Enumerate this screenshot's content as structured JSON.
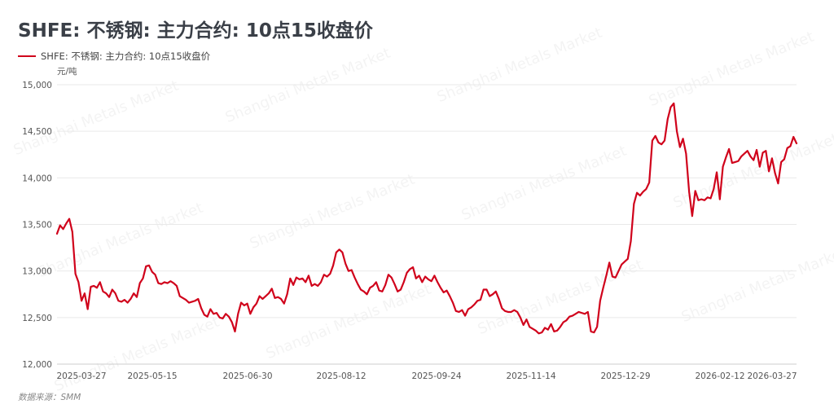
{
  "title": "SHFE: 不锈钢: 主力合约: 10点15收盘价",
  "source": "数据来源：SMM",
  "watermark": "Shanghai Metals Market",
  "colors": {
    "line": "#d0021b",
    "grid": "#e9e9e9"
  },
  "chart_data": {
    "type": "line",
    "title": "SHFE: 不锈钢: 主力合约: 10点15收盘价",
    "ylabel": "元/吨",
    "xlabel": "",
    "ylim": [
      12000,
      15000
    ],
    "yticks": [
      12000,
      12500,
      13000,
      13500,
      14000,
      14500,
      15000
    ],
    "ytick_labels": [
      "12,000",
      "12,500",
      "13,000",
      "13,500",
      "14,000",
      "14,500",
      "15,000"
    ],
    "xtick_labels": [
      "2025-03-27",
      "2025-05-15",
      "2025-06-30",
      "2025-08-12",
      "2025-09-24",
      "2025-11-14",
      "2025-12-29",
      "2026-02-12",
      "2026-03-27"
    ],
    "grid": true,
    "legend": "top-left",
    "series": [
      {
        "name": "SHFE: 不锈钢: 主力合约: 10点15收盘价",
        "values": [
          13400,
          13490,
          13450,
          13510,
          13560,
          13420,
          12970,
          12880,
          12680,
          12760,
          12590,
          12830,
          12840,
          12820,
          12880,
          12780,
          12760,
          12720,
          12800,
          12760,
          12680,
          12670,
          12690,
          12660,
          12700,
          12760,
          12720,
          12870,
          12920,
          13050,
          13060,
          12990,
          12960,
          12870,
          12860,
          12880,
          12870,
          12890,
          12870,
          12840,
          12730,
          12710,
          12690,
          12660,
          12670,
          12680,
          12700,
          12600,
          12530,
          12510,
          12590,
          12540,
          12550,
          12500,
          12490,
          12540,
          12510,
          12450,
          12350,
          12540,
          12660,
          12630,
          12650,
          12540,
          12610,
          12650,
          12730,
          12700,
          12730,
          12760,
          12810,
          12710,
          12720,
          12700,
          12650,
          12750,
          12920,
          12850,
          12930,
          12910,
          12920,
          12880,
          12950,
          12840,
          12860,
          12840,
          12880,
          12960,
          12940,
          12970,
          13060,
          13200,
          13230,
          13200,
          13080,
          13000,
          13010,
          12930,
          12860,
          12800,
          12780,
          12750,
          12820,
          12840,
          12880,
          12790,
          12780,
          12850,
          12960,
          12930,
          12860,
          12780,
          12800,
          12880,
          12980,
          13020,
          13040,
          12920,
          12950,
          12880,
          12940,
          12910,
          12890,
          12950,
          12880,
          12820,
          12770,
          12790,
          12730,
          12660,
          12570,
          12560,
          12580,
          12520,
          12590,
          12610,
          12640,
          12680,
          12690,
          12800,
          12800,
          12730,
          12750,
          12780,
          12700,
          12600,
          12570,
          12560,
          12560,
          12580,
          12560,
          12500,
          12420,
          12480,
          12400,
          12380,
          12360,
          12330,
          12340,
          12390,
          12370,
          12430,
          12350,
          12360,
          12400,
          12450,
          12470,
          12510,
          12520,
          12540,
          12560,
          12550,
          12540,
          12560,
          12350,
          12340,
          12400,
          12680,
          12820,
          12950,
          13090,
          12940,
          12930,
          13000,
          13070,
          13100,
          13130,
          13320,
          13720,
          13840,
          13810,
          13850,
          13880,
          13950,
          14400,
          14450,
          14380,
          14360,
          14400,
          14630,
          14760,
          14800,
          14500,
          14330,
          14420,
          14260,
          13850,
          13590,
          13860,
          13760,
          13770,
          13760,
          13790,
          13780,
          13880,
          14060,
          13770,
          14120,
          14220,
          14310,
          14160,
          14170,
          14180,
          14230,
          14260,
          14290,
          14230,
          14190,
          14300,
          14120,
          14270,
          14290,
          14070,
          14210,
          14050,
          13940,
          14170,
          14200,
          14320,
          14340,
          14440,
          14370
        ]
      }
    ]
  }
}
